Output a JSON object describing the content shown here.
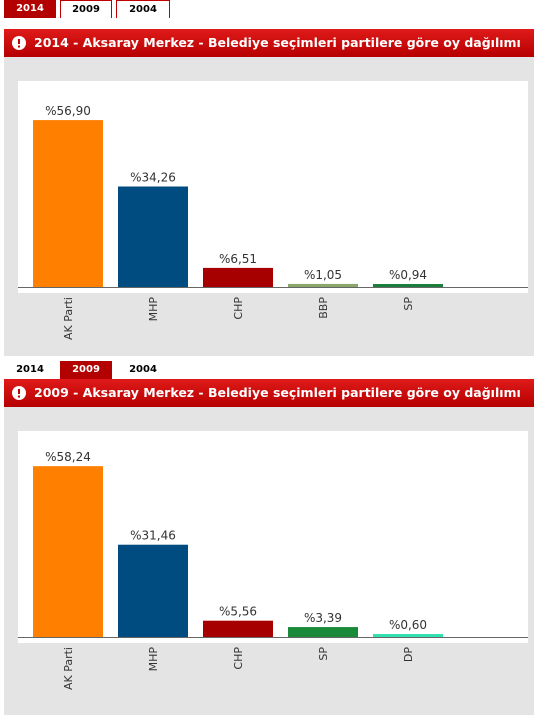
{
  "panels": [
    {
      "tabs": [
        {
          "label": "2014",
          "active": true
        },
        {
          "label": "2009",
          "active": false
        },
        {
          "label": "2004",
          "active": false
        }
      ],
      "title": "2014 - Aksaray Merkez - Belediye seçimleri partilere göre oy dağılımı"
    },
    {
      "tabs": [
        {
          "label": "2014",
          "active": false
        },
        {
          "label": "2009",
          "active": true
        },
        {
          "label": "2004",
          "active": false
        }
      ],
      "title": "2009 - Aksaray Merkez - Belediye seçimleri partilere göre oy dağılımı"
    }
  ],
  "chart_data": [
    {
      "type": "bar",
      "title": "2014 - Aksaray Merkez - Belediye seçimleri partilere göre oy dağılımı",
      "categories": [
        "AK Parti",
        "MHP",
        "CHP",
        "BBP",
        "SP"
      ],
      "values": [
        56.9,
        34.26,
        6.51,
        1.05,
        0.94
      ],
      "value_labels": [
        "%56,90",
        "%34,26",
        "%6,51",
        "%1,05",
        "%0,94"
      ],
      "colors": [
        "#ff7f00",
        "#004b7f",
        "#a60000",
        "#8aa66a",
        "#1a7f3a"
      ],
      "ylim": [
        0,
        60
      ],
      "grid": false
    },
    {
      "type": "bar",
      "title": "2009 - Aksaray Merkez - Belediye seçimleri partilere göre oy dağılımı",
      "categories": [
        "AK Parti",
        "MHP",
        "CHP",
        "SP",
        "DP"
      ],
      "values": [
        58.24,
        31.46,
        5.56,
        3.39,
        0.6
      ],
      "value_labels": [
        "%58,24",
        "%31,46",
        "%5,56",
        "%3,39",
        "%0,60"
      ],
      "colors": [
        "#ff7f00",
        "#004b7f",
        "#a60000",
        "#1a8a3a",
        "#33e0b0"
      ],
      "ylim": [
        0,
        60
      ],
      "grid": false
    }
  ]
}
